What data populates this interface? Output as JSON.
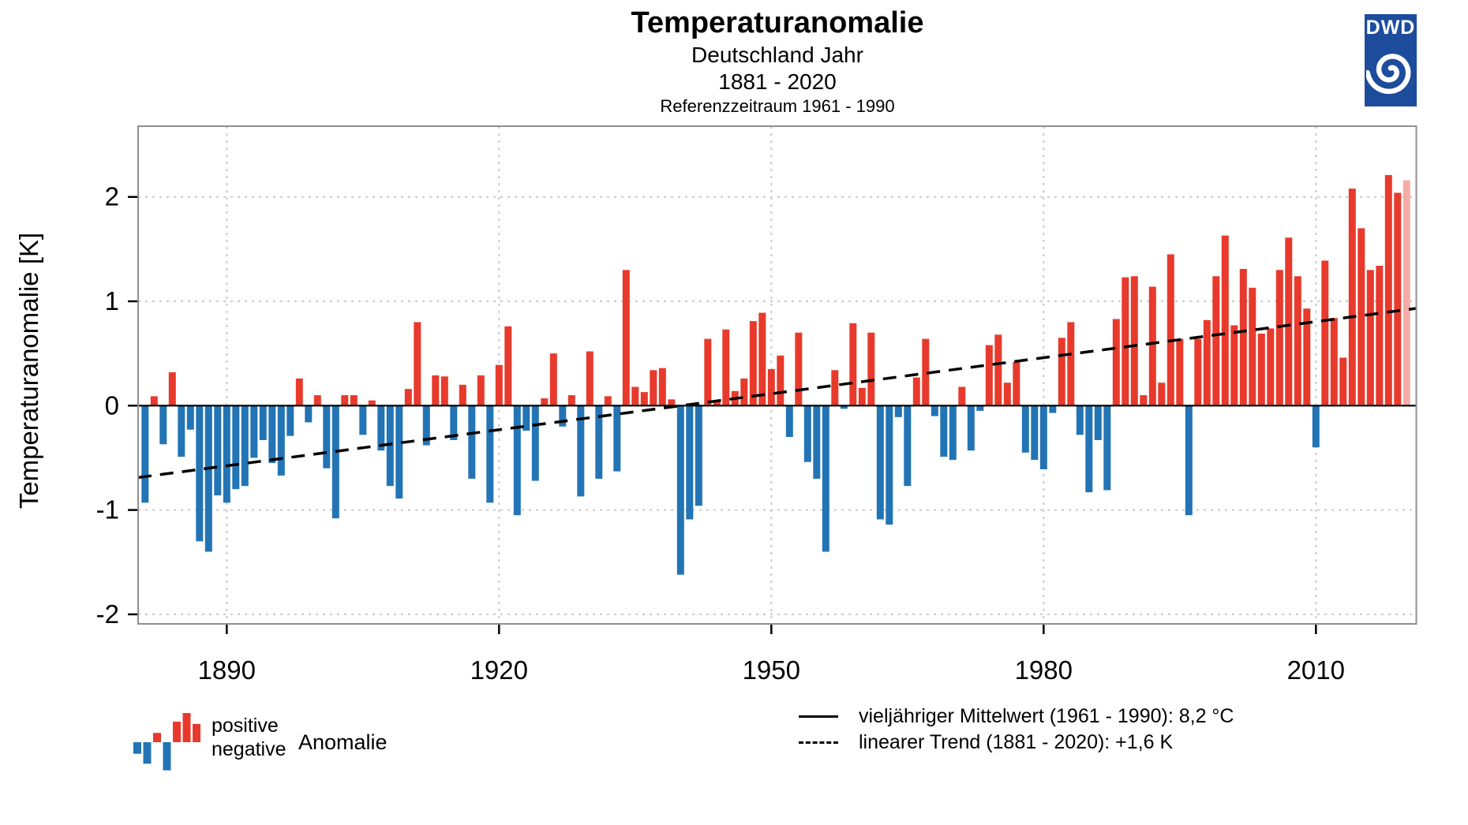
{
  "header": {
    "title": "Temperaturanomalie",
    "subtitle": "Deutschland Jahr",
    "period": "1881 - 2020",
    "reference": "Referenzzeitraum 1961 - 1990"
  },
  "logo": {
    "text": "DWD",
    "bg_color": "#1d4c9c",
    "spiral_icon": "spiral-icon"
  },
  "y_axis": {
    "title": "Temperaturanomalie [K]",
    "ticks": [
      2,
      1,
      0,
      -1,
      -2
    ]
  },
  "x_axis": {
    "ticks": [
      1890,
      1920,
      1950,
      1980,
      2010
    ]
  },
  "chart_data": {
    "type": "bar",
    "title": "Temperaturanomalie",
    "xlabel": "",
    "ylabel": "Temperaturanomalie [K]",
    "year_start": 1881,
    "year_end": 2020,
    "ylim": [
      -2.1,
      2.68
    ],
    "grid": true,
    "values": [
      -0.93,
      0.09,
      -0.37,
      0.32,
      -0.49,
      -0.23,
      -1.3,
      -1.4,
      -0.86,
      -0.93,
      -0.8,
      -0.77,
      -0.5,
      -0.33,
      -0.55,
      -0.67,
      -0.29,
      0.26,
      -0.16,
      0.1,
      -0.6,
      -1.08,
      0.1,
      0.1,
      -0.28,
      0.05,
      -0.43,
      -0.77,
      -0.89,
      0.16,
      0.8,
      -0.38,
      0.29,
      0.28,
      -0.33,
      0.2,
      -0.7,
      0.29,
      -0.93,
      0.39,
      0.76,
      -1.05,
      -0.24,
      -0.72,
      0.07,
      0.5,
      -0.2,
      0.1,
      -0.87,
      0.52,
      -0.7,
      0.09,
      -0.63,
      1.3,
      0.18,
      0.13,
      0.34,
      0.36,
      0.06,
      -1.62,
      -1.09,
      -0.96,
      0.64,
      0.05,
      0.73,
      0.14,
      0.26,
      0.81,
      0.89,
      0.35,
      0.48,
      -0.3,
      0.7,
      -0.54,
      -0.7,
      -1.4,
      0.34,
      -0.03,
      0.79,
      0.17,
      0.7,
      -1.09,
      -1.14,
      -0.11,
      -0.77,
      0.27,
      0.64,
      -0.1,
      -0.49,
      -0.52,
      0.18,
      -0.43,
      -0.05,
      0.58,
      0.68,
      0.22,
      0.42,
      -0.45,
      -0.52,
      -0.61,
      -0.07,
      0.65,
      0.8,
      -0.28,
      -0.83,
      -0.33,
      -0.81,
      0.83,
      1.23,
      1.24,
      0.1,
      1.14,
      0.22,
      1.45,
      0.64,
      -1.05,
      0.64,
      0.82,
      1.24,
      1.63,
      0.77,
      1.31,
      1.13,
      0.69,
      0.74,
      1.3,
      1.61,
      1.24,
      0.93,
      -0.4,
      1.39,
      0.84,
      0.46,
      2.08,
      1.7,
      1.3,
      1.34,
      2.21,
      2.04,
      2.16
    ],
    "colors": {
      "positive": "#e73a2c",
      "negative": "#2274b5",
      "latest_year": "#f6aca6"
    },
    "mean_line": {
      "value": 0,
      "style": "solid"
    },
    "trend_line": {
      "style": "dashed",
      "start_year": 1881,
      "start_value": -0.68,
      "end_year": 2020,
      "end_value": 0.92
    },
    "legend_position": "bottom"
  },
  "legend_left": {
    "positive_label": "positive",
    "negative_label": "negative",
    "anomaly_label": "Anomalie",
    "glyph_values": [
      -0.35,
      -0.65,
      0.28,
      -0.85,
      0.62,
      0.88,
      0.55
    ]
  },
  "legend_right": {
    "mean_label": "vieljähriger Mittelwert (1961 - 1990): 8,2 °C",
    "trend_label": "linearer Trend (1881 - 2020): +1,6 K"
  }
}
